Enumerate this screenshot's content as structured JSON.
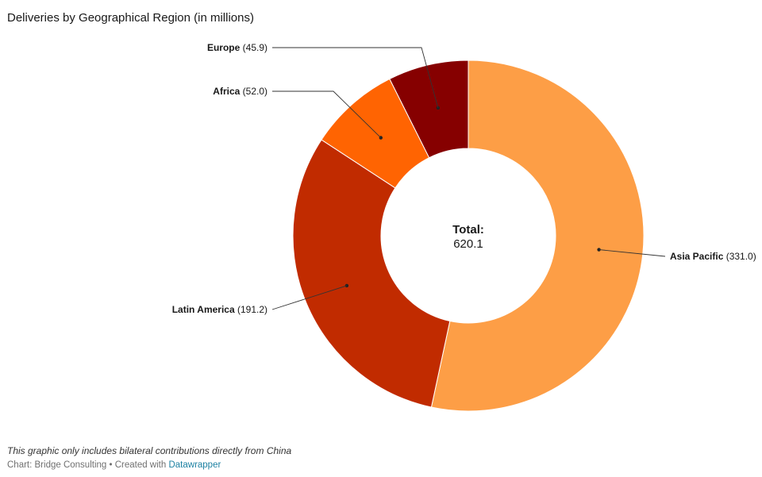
{
  "title": "Deliveries by Geographical Region (in millions)",
  "chart_data": {
    "type": "pie",
    "donut": true,
    "center_label": {
      "title": "Total:",
      "value": "620.1"
    },
    "slices": [
      {
        "label": "Asia Pacific",
        "value": 331.0,
        "value_text": "(331.0)",
        "color": "#fd9e46"
      },
      {
        "label": "Latin America",
        "value": 191.2,
        "value_text": "(191.2)",
        "color": "#c12b00"
      },
      {
        "label": "Africa",
        "value": 52.0,
        "value_text": "(52.0)",
        "color": "#ff6402"
      },
      {
        "label": "Europe",
        "value": 45.9,
        "value_text": "(45.9)",
        "color": "#860000"
      }
    ]
  },
  "notes": "This graphic only includes bilateral contributions directly from China",
  "credit": {
    "prefix": "Chart: Bridge Consulting • Created with ",
    "link": "Datawrapper"
  }
}
